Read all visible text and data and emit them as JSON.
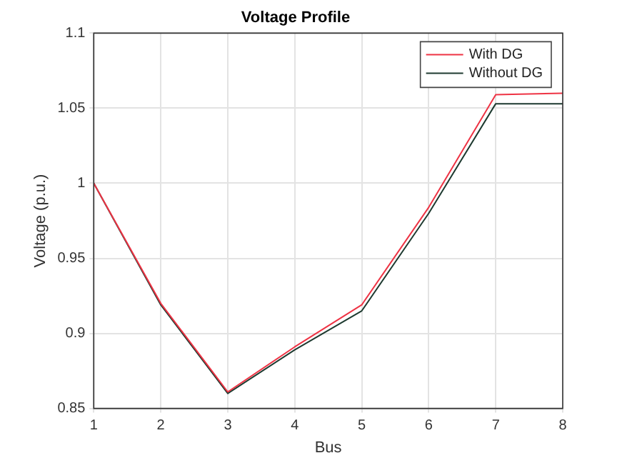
{
  "chart_data": {
    "type": "line",
    "title": "Voltage Profile",
    "xlabel": "Bus",
    "ylabel": "Voltage (p.u.)",
    "x": [
      1,
      2,
      3,
      4,
      5,
      6,
      7,
      8
    ],
    "series": [
      {
        "name": "With DG",
        "color": "#ee3344",
        "values": [
          1,
          0.92,
          0.861,
          0.891,
          0.919,
          0.984,
          1.059,
          1.06
        ]
      },
      {
        "name": "Without DG",
        "color": "#1e3a30",
        "values": [
          1,
          0.919,
          0.86,
          0.889,
          0.915,
          0.98,
          1.053,
          1.053
        ]
      }
    ],
    "xlim": [
      1,
      8
    ],
    "xticks": [
      1,
      2,
      3,
      4,
      5,
      6,
      7,
      8
    ],
    "ylim": [
      0.85,
      1.1
    ],
    "yticks": [
      0.85,
      0.9,
      0.95,
      1,
      1.05,
      1.1
    ],
    "grid": true,
    "legend": "top right",
    "marker": "none",
    "line_style": "solid"
  }
}
